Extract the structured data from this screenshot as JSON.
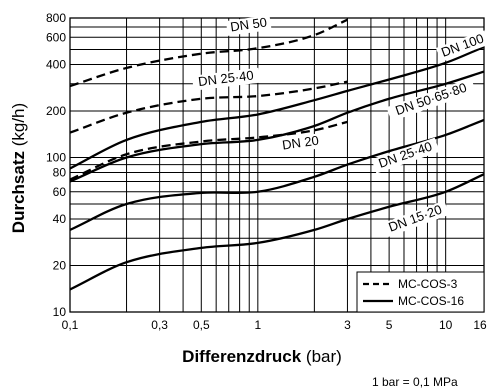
{
  "chart_data": {
    "type": "line",
    "xscale": "log",
    "yscale": "log",
    "xlim": [
      0.1,
      16
    ],
    "ylim": [
      10,
      800
    ],
    "xlabel_bold": "Differenzdruck",
    "xlabel_unit": " (bar)",
    "ylabel_bold": "Durchsatz",
    "ylabel_unit": " (kg/h)",
    "xticks": [
      {
        "value": 0.1,
        "label": "0,1"
      },
      {
        "value": 0.3,
        "label": "0,3"
      },
      {
        "value": 0.5,
        "label": "0,5"
      },
      {
        "value": 1,
        "label": "1"
      },
      {
        "value": 3,
        "label": "3"
      },
      {
        "value": 5,
        "label": "5"
      },
      {
        "value": 10,
        "label": "10"
      },
      {
        "value": 16,
        "label": "16"
      }
    ],
    "yticks": [
      {
        "value": 10,
        "label": "10"
      },
      {
        "value": 20,
        "label": "20"
      },
      {
        "value": 40,
        "label": "40"
      },
      {
        "value": 60,
        "label": "60"
      },
      {
        "value": 80,
        "label": "80"
      },
      {
        "value": 100,
        "label": "100"
      },
      {
        "value": 200,
        "label": "200"
      },
      {
        "value": 400,
        "label": "400"
      },
      {
        "value": 600,
        "label": "600"
      },
      {
        "value": 800,
        "label": "800"
      }
    ],
    "x_gridlines": [
      0.1,
      0.2,
      0.3,
      0.4,
      0.5,
      0.6,
      0.7,
      0.8,
      0.9,
      1,
      2,
      3,
      4,
      5,
      6,
      7,
      8,
      9,
      10,
      16
    ],
    "y_gridlines": [
      10,
      20,
      30,
      40,
      50,
      60,
      70,
      80,
      90,
      100,
      200,
      300,
      400,
      500,
      600,
      700,
      800
    ],
    "grid": true,
    "legend_position": "bottom-right",
    "legend": [
      {
        "style": "dashed",
        "label": "MC-COS-3"
      },
      {
        "style": "solid",
        "label": "MC-COS-16"
      }
    ],
    "series": [
      {
        "name": "DN 50",
        "style": "dashed",
        "x": [
          0.1,
          0.2,
          0.5,
          1,
          2,
          3
        ],
        "y": [
          290,
          380,
          470,
          510,
          620,
          780
        ]
      },
      {
        "name": "DN 25·40",
        "style": "dashed",
        "x": [
          0.1,
          0.2,
          0.5,
          1,
          2,
          3
        ],
        "y": [
          145,
          195,
          240,
          250,
          280,
          310
        ]
      },
      {
        "name": "DN 20",
        "style": "dashed",
        "x": [
          0.1,
          0.2,
          0.5,
          1,
          2,
          3
        ],
        "y": [
          72,
          105,
          127,
          135,
          150,
          170
        ]
      },
      {
        "name": "DN 100",
        "style": "solid",
        "x": [
          0.1,
          0.2,
          0.5,
          1,
          2,
          3,
          5,
          10,
          16
        ],
        "y": [
          85,
          130,
          170,
          190,
          235,
          270,
          320,
          410,
          520
        ]
      },
      {
        "name": "DN 50·65·80",
        "style": "solid",
        "x": [
          0.1,
          0.2,
          0.5,
          1,
          2,
          3,
          5,
          10,
          16
        ],
        "y": [
          70,
          100,
          122,
          130,
          160,
          195,
          240,
          300,
          360
        ]
      },
      {
        "name": "DN 25·40",
        "style": "solid",
        "x": [
          0.1,
          0.2,
          0.5,
          1,
          2,
          3,
          5,
          10,
          16
        ],
        "y": [
          34,
          50,
          59,
          60,
          75,
          90,
          110,
          140,
          175
        ]
      },
      {
        "name": "DN 15·20",
        "style": "solid",
        "x": [
          0.1,
          0.2,
          0.5,
          1,
          2,
          3,
          5,
          10,
          16
        ],
        "y": [
          14,
          21,
          26,
          28,
          34,
          40,
          48,
          60,
          78
        ]
      }
    ],
    "curve_labels": [
      {
        "text": "DN 50",
        "at": [
          0.9,
          680
        ]
      },
      {
        "text": "DN 25·40",
        "at": [
          0.68,
          305
        ]
      },
      {
        "text": "DN 20",
        "at": [
          1.7,
          117
        ]
      },
      {
        "text": "DN 100",
        "at": [
          12.5,
          500
        ]
      },
      {
        "text": "DN 50·65·80",
        "at": [
          8.5,
          225
        ]
      },
      {
        "text": "DN 25·40",
        "at": [
          6.2,
          98
        ]
      },
      {
        "text": "DN 15·20",
        "at": [
          7.0,
          38
        ]
      }
    ],
    "footnote": "1 bar = 0,1 MPa"
  }
}
